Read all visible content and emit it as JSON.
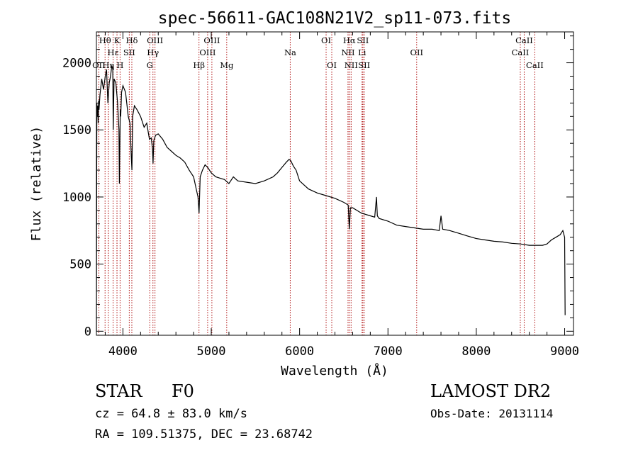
{
  "chart_data": {
    "type": "line",
    "title": "spec-56611-GAC108N21V2_sp11-073.fits",
    "xlabel": "Wavelength (Å)",
    "ylabel": "Flux (relative)",
    "xlim": [
      3700,
      9100
    ],
    "ylim": [
      -30,
      2230
    ],
    "x_ticks": [
      4000,
      5000,
      6000,
      7000,
      8000,
      9000
    ],
    "y_ticks": [
      0,
      500,
      1000,
      1500,
      2000
    ],
    "grid": false,
    "series": [
      {
        "x": [
          3700,
          3705,
          3710,
          3715,
          3720,
          3725,
          3730,
          3740,
          3760,
          3780,
          3800,
          3815,
          3830,
          3845,
          3860,
          3875,
          3885,
          3890,
          3900,
          3920,
          3940,
          3955,
          3960,
          3970,
          3975,
          3985,
          4000,
          4030,
          4060,
          4080,
          4095,
          4102,
          4110,
          4130,
          4160,
          4200,
          4240,
          4270,
          4300,
          4320,
          4335,
          4341,
          4350,
          4370,
          4400,
          4450,
          4500,
          4550,
          4600,
          4650,
          4700,
          4750,
          4800,
          4830,
          4850,
          4862,
          4875,
          4900,
          4930,
          4960,
          5000,
          5050,
          5100,
          5150,
          5200,
          5250,
          5300,
          5400,
          5500,
          5600,
          5700,
          5750,
          5800,
          5850,
          5880,
          5900,
          5930,
          5960,
          6000,
          6100,
          6200,
          6300,
          6400,
          6500,
          6550,
          6563,
          6575,
          6600,
          6700,
          6800,
          6850,
          6870,
          6880,
          6900,
          7000,
          7100,
          7200,
          7300,
          7400,
          7500,
          7580,
          7600,
          7620,
          7700,
          7800,
          7900,
          8000,
          8100,
          8200,
          8300,
          8400,
          8500,
          8600,
          8700,
          8750,
          8800,
          8850,
          8900,
          8950,
          8980,
          9000,
          9005
        ],
        "y": [
          0,
          1700,
          1600,
          1680,
          1550,
          1720,
          1650,
          1760,
          1880,
          1800,
          1900,
          1950,
          1700,
          1850,
          1900,
          1980,
          1950,
          1500,
          1880,
          1850,
          1700,
          1500,
          1100,
          1650,
          1600,
          1780,
          1830,
          1780,
          1600,
          1550,
          1300,
          1200,
          1600,
          1680,
          1650,
          1600,
          1520,
          1550,
          1430,
          1440,
          1360,
          1250,
          1420,
          1460,
          1470,
          1430,
          1370,
          1340,
          1310,
          1290,
          1260,
          1200,
          1150,
          1060,
          1000,
          880,
          1150,
          1200,
          1240,
          1220,
          1180,
          1150,
          1140,
          1130,
          1100,
          1150,
          1120,
          1110,
          1100,
          1120,
          1150,
          1180,
          1220,
          1260,
          1280,
          1270,
          1230,
          1200,
          1120,
          1060,
          1030,
          1010,
          990,
          960,
          940,
          760,
          920,
          920,
          880,
          860,
          850,
          1000,
          860,
          840,
          820,
          790,
          780,
          770,
          760,
          760,
          750,
          860,
          760,
          750,
          730,
          710,
          690,
          680,
          670,
          665,
          655,
          650,
          640,
          640,
          640,
          650,
          680,
          700,
          720,
          750,
          700,
          120
        ]
      }
    ],
    "lines": [
      {
        "label": "OII",
        "x": 3727,
        "row": 3
      },
      {
        "label": "Hθ",
        "x": 3798,
        "row": 1
      },
      {
        "label": "Hη",
        "x": 3835,
        "row": 3
      },
      {
        "label": "Hε",
        "x": 3889,
        "row": 2
      },
      {
        "label": "K",
        "x": 3933,
        "row": 1
      },
      {
        "label": "H",
        "x": 3968,
        "row": 3
      },
      {
        "label": "SII",
        "x": 4072,
        "row": 2
      },
      {
        "label": "Hδ",
        "x": 4101,
        "row": 1
      },
      {
        "label": "G",
        "x": 4304,
        "row": 3
      },
      {
        "label": "Hγ",
        "x": 4340,
        "row": 2
      },
      {
        "label": "OIII",
        "x": 4363,
        "row": 1
      },
      {
        "label": "Hβ",
        "x": 4861,
        "row": 3
      },
      {
        "label": "OIII",
        "x": 4959,
        "row": 2
      },
      {
        "label": "OIII",
        "x": 5007,
        "row": 1
      },
      {
        "label": "Mg",
        "x": 5175,
        "row": 3
      },
      {
        "label": "Na",
        "x": 5894,
        "row": 2
      },
      {
        "label": "OI",
        "x": 6300,
        "row": 1
      },
      {
        "label": "OI",
        "x": 6364,
        "row": 3
      },
      {
        "label": "NII",
        "x": 6548,
        "row": 2
      },
      {
        "label": "Hα",
        "x": 6563,
        "row": 1
      },
      {
        "label": "NII",
        "x": 6583,
        "row": 3
      },
      {
        "label": "Li",
        "x": 6707,
        "row": 2
      },
      {
        "label": "SII",
        "x": 6716,
        "row": 1
      },
      {
        "label": "SII",
        "x": 6731,
        "row": 3
      },
      {
        "label": "OII",
        "x": 7325,
        "row": 2
      },
      {
        "label": "CaII",
        "x": 8498,
        "row": 2
      },
      {
        "label": "CaII",
        "x": 8542,
        "row": 1
      },
      {
        "label": "CaII",
        "x": 8662,
        "row": 3
      }
    ],
    "line_color": "#aa0000"
  },
  "info": {
    "object_class": "STAR",
    "subclass": "F0",
    "survey": "LAMOST DR2",
    "redshift": "cz = 64.8 ± 83.0 km/s",
    "obs_date": "Obs-Date: 20131114",
    "coords": "RA = 109.51375, DEC =  23.68742"
  }
}
